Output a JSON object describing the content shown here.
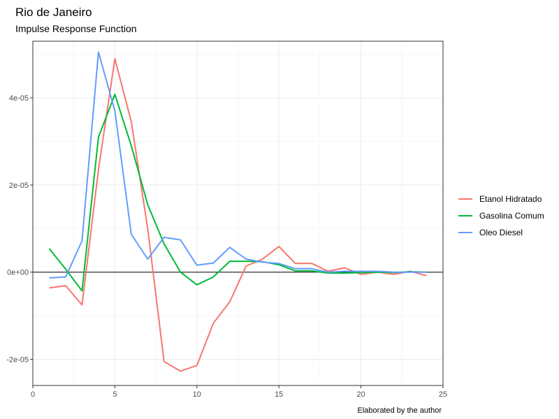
{
  "chart_data": {
    "type": "line",
    "title": "Rio de Janeiro",
    "subtitle": "Impulse Response Function",
    "caption": "Elaborated by the author",
    "xlabel": "",
    "ylabel": "",
    "xlim": [
      0,
      25
    ],
    "ylim": [
      -2.6e-05,
      5.3e-05
    ],
    "x_ticks": [
      0,
      5,
      10,
      15,
      20,
      25
    ],
    "x_tick_labels": [
      "0",
      "5",
      "10",
      "15",
      "20",
      "25"
    ],
    "y_ticks": [
      -2e-05,
      0,
      2e-05,
      4e-05
    ],
    "y_tick_labels": [
      "-2e-05",
      "0e+00",
      "2e-05",
      "4e-05"
    ],
    "grid": true,
    "zero_line": true,
    "legend_position": "right",
    "x": [
      1,
      2,
      3,
      4,
      5,
      6,
      7,
      8,
      9,
      10,
      11,
      12,
      13,
      14,
      15,
      16,
      17,
      18,
      19,
      20,
      21,
      22,
      23,
      24
    ],
    "series": [
      {
        "name": "Etanol Hidratado",
        "color": "#F8766D",
        "values": [
          -3.6e-06,
          -3.1e-06,
          -7.5e-06,
          2.35e-05,
          4.9e-05,
          3.45e-05,
          1e-05,
          -2.05e-05,
          -2.27e-05,
          -2.14e-05,
          -1.17e-05,
          -6.8e-06,
          1.4e-06,
          3e-06,
          5.9e-06,
          2e-06,
          2e-06,
          2e-07,
          1e-06,
          -5e-07,
          0.0,
          -5e-07,
          2e-07,
          -8e-07
        ]
      },
      {
        "name": "Gasolina Comum",
        "color": "#00BA38",
        "values": [
          5.4e-06,
          7e-07,
          -4.3e-06,
          3.1e-05,
          4.08e-05,
          2.9e-05,
          1.55e-05,
          6.5e-06,
          0.0,
          -2.9e-06,
          -1.1e-06,
          2.5e-06,
          2.5e-06,
          2.4e-06,
          1.7e-06,
          3e-07,
          3e-07,
          -2e-07,
          -2e-07,
          -1e-07,
          0.0,
          -1e-07,
          1e-07,
          0.0
        ]
      },
      {
        "name": "Oleo Diesel",
        "color": "#619CFF",
        "values": [
          -1.3e-06,
          -1.1e-06,
          7.2e-06,
          5.05e-05,
          3.7e-05,
          8.7e-06,
          3e-06,
          8e-06,
          7.4e-06,
          1.6e-06,
          2.1e-06,
          5.7e-06,
          3e-06,
          2.3e-06,
          2e-06,
          8e-07,
          8e-07,
          0.0,
          2e-07,
          2e-07,
          2e-07,
          0.0,
          0.0,
          0.0
        ]
      }
    ]
  }
}
